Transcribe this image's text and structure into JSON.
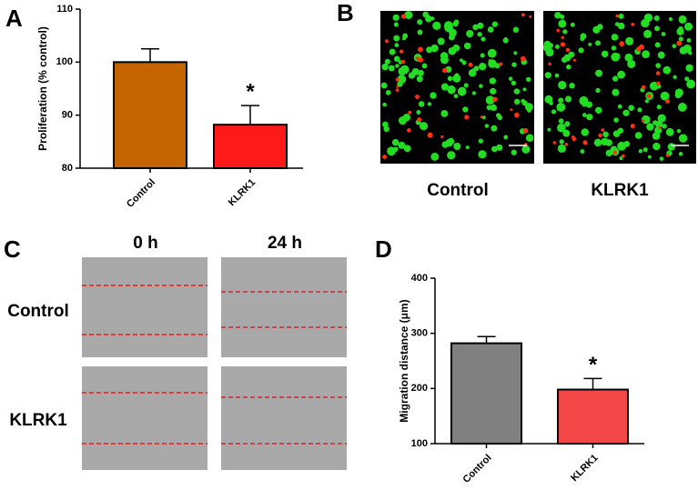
{
  "panel_labels": [
    "A",
    "B",
    "C",
    "D"
  ],
  "panel_b": {
    "columns": [
      "Control",
      "KLRK1"
    ]
  },
  "panel_c": {
    "columns": [
      "0 h",
      "24 h"
    ],
    "rows": [
      "Control",
      "KLRK1"
    ]
  },
  "chart_data": [
    {
      "type": "bar",
      "y_label": "Proliferation (% control)",
      "categories": [
        "Control",
        "KLRK1"
      ],
      "series": [
        {
          "values": [
            100,
            88.2
          ],
          "errors": [
            2.5,
            3.6
          ],
          "colors": [
            "#c46400",
            "#ff1a1a"
          ]
        }
      ],
      "ylim": [
        80,
        110
      ],
      "yticks": [
        80,
        90,
        100,
        110
      ],
      "annotation": "*"
    },
    {
      "type": "bar",
      "y_label": "Migration distance (μm)",
      "categories": [
        "Control",
        "KLRK1"
      ],
      "series": [
        {
          "values": [
            282,
            198
          ],
          "errors": [
            12,
            20
          ],
          "colors": [
            "#808080",
            "#f44848"
          ]
        }
      ],
      "ylim": [
        100,
        400
      ],
      "yticks": [
        100,
        200,
        300,
        400
      ],
      "annotation": "*"
    }
  ]
}
